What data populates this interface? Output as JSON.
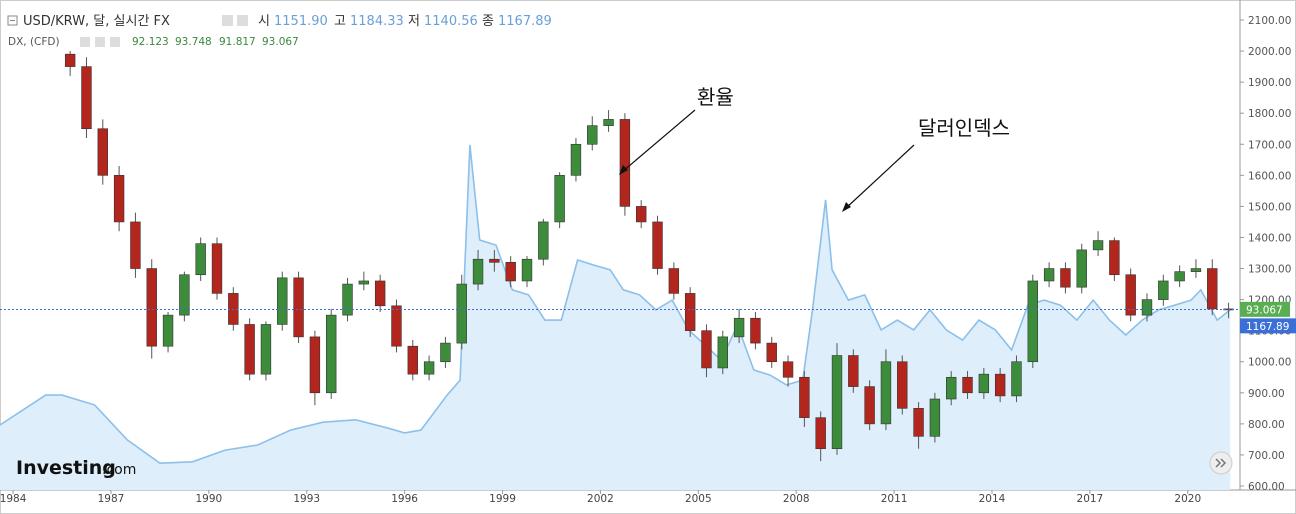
{
  "header": {
    "title": "USD/KRW, 달, 실시간 FX",
    "open_label": "시",
    "open": "1151.90",
    "high_label": "고",
    "high": "1184.33",
    "low_label": "저",
    "low": "1140.56",
    "close_label": "종",
    "close": "1167.89",
    "overlay_title": "DX, (CFD)",
    "overlay_open": "92.123",
    "overlay_high": "93.748",
    "overlay_low": "91.817",
    "overlay_close": "93.067"
  },
  "logo": {
    "brand": "Investing",
    "suffix": ".com"
  },
  "chart_data": {
    "type": "candlestick",
    "annotations": [
      "환율",
      "달러인덱스"
    ],
    "xlim": [
      1983.6,
      2021.6
    ],
    "xticks": [
      1984,
      1987,
      1990,
      1993,
      1996,
      1999,
      2002,
      2005,
      2008,
      2011,
      2014,
      2017,
      2020
    ],
    "ylim": [
      600,
      2100
    ],
    "yticks": [
      {
        "value": 600,
        "label": "600.00"
      },
      {
        "value": 700,
        "label": "700.00"
      },
      {
        "value": 800,
        "label": "800.00"
      },
      {
        "value": 900,
        "label": "900.00"
      },
      {
        "value": 1000,
        "label": "1000.00"
      },
      {
        "value": 1100,
        "label": "1100.00"
      },
      {
        "value": 1200,
        "label": "1200.00"
      },
      {
        "value": 1300,
        "label": "1300.00"
      },
      {
        "value": 1400,
        "label": "1400.00"
      },
      {
        "value": 1500,
        "label": "1500.00"
      },
      {
        "value": 1600,
        "label": "1600.00"
      },
      {
        "value": 1700,
        "label": "1700.00"
      },
      {
        "value": 1800,
        "label": "1800.00"
      },
      {
        "value": 1900,
        "label": "1900.00"
      },
      {
        "value": 2000,
        "label": "2000.00"
      },
      {
        "value": 2100,
        "label": "2100.00"
      }
    ],
    "y2lim": [
      55,
      155
    ],
    "up_color": "#3c8c3c",
    "down_color": "#b3261e",
    "candles": {
      "x": [
        1985.75,
        1986.25,
        1986.75,
        1987.25,
        1987.75,
        1988.25,
        1988.75,
        1989.25,
        1989.75,
        1990.25,
        1990.75,
        1991.25,
        1991.75,
        1992.25,
        1992.75,
        1993.25,
        1993.75,
        1994.25,
        1994.75,
        1995.25,
        1995.75,
        1996.25,
        1996.75,
        1997.25,
        1997.75,
        1998.25,
        1998.75,
        1999.25,
        1999.75,
        2000.25,
        2000.75,
        2001.25,
        2001.75,
        2002.25,
        2002.75,
        2003.25,
        2003.75,
        2004.25,
        2004.75,
        2005.25,
        2005.75,
        2006.25,
        2006.75,
        2007.25,
        2007.75,
        2008.25,
        2008.75,
        2009.25,
        2009.75,
        2010.25,
        2010.75,
        2011.25,
        2011.75,
        2012.25,
        2012.75,
        2013.25,
        2013.75,
        2014.25,
        2014.75,
        2015.25,
        2015.75,
        2016.25,
        2016.75,
        2017.25,
        2017.75,
        2018.25,
        2018.75,
        2019.25,
        2019.75,
        2020.25,
        2020.75,
        2021.25
      ],
      "open": [
        1990,
        1950,
        1750,
        1600,
        1450,
        1300,
        1050,
        1150,
        1280,
        1380,
        1220,
        1120,
        960,
        1120,
        1270,
        1080,
        900,
        1150,
        1250,
        1260,
        1180,
        1050,
        960,
        1000,
        1060,
        1250,
        1330,
        1320,
        1260,
        1330,
        1450,
        1600,
        1700,
        1760,
        1780,
        1500,
        1450,
        1300,
        1220,
        1100,
        980,
        1080,
        1140,
        1060,
        1000,
        950,
        820,
        720,
        1020,
        920,
        800,
        1000,
        850,
        760,
        880,
        950,
        900,
        960,
        890,
        1000,
        1260,
        1300,
        1240,
        1360,
        1390,
        1280,
        1150,
        1200,
        1260,
        1290,
        1300,
        1170
      ],
      "high": [
        2000,
        1980,
        1780,
        1630,
        1480,
        1330,
        1160,
        1290,
        1400,
        1400,
        1240,
        1140,
        1130,
        1290,
        1290,
        1100,
        1170,
        1270,
        1290,
        1280,
        1200,
        1070,
        1020,
        1080,
        1280,
        1360,
        1360,
        1340,
        1340,
        1460,
        1610,
        1720,
        1790,
        1810,
        1800,
        1520,
        1470,
        1320,
        1240,
        1120,
        1100,
        1170,
        1160,
        1080,
        1020,
        970,
        840,
        1060,
        1040,
        940,
        1040,
        1020,
        870,
        900,
        970,
        970,
        980,
        980,
        1020,
        1280,
        1320,
        1320,
        1380,
        1420,
        1400,
        1300,
        1220,
        1280,
        1310,
        1330,
        1330,
        1190
      ],
      "low": [
        1920,
        1720,
        1570,
        1420,
        1270,
        1010,
        1030,
        1130,
        1260,
        1200,
        1100,
        940,
        940,
        1100,
        1060,
        860,
        880,
        1130,
        1230,
        1160,
        1030,
        940,
        940,
        980,
        1040,
        1230,
        1290,
        1240,
        1240,
        1310,
        1430,
        1580,
        1680,
        1740,
        1470,
        1430,
        1280,
        1200,
        1080,
        950,
        960,
        1060,
        1040,
        980,
        920,
        790,
        680,
        700,
        900,
        780,
        780,
        830,
        720,
        740,
        860,
        880,
        880,
        870,
        870,
        980,
        1240,
        1220,
        1220,
        1340,
        1260,
        1130,
        1130,
        1180,
        1240,
        1270,
        1150,
        1140
      ],
      "close": [
        1950,
        1750,
        1600,
        1450,
        1300,
        1050,
        1150,
        1280,
        1380,
        1220,
        1120,
        960,
        1120,
        1270,
        1080,
        900,
        1150,
        1250,
        1260,
        1180,
        1050,
        960,
        1000,
        1060,
        1250,
        1330,
        1320,
        1260,
        1330,
        1450,
        1600,
        1700,
        1760,
        1780,
        1500,
        1450,
        1300,
        1220,
        1100,
        980,
        1080,
        1140,
        1060,
        1000,
        950,
        820,
        720,
        1020,
        920,
        800,
        1000,
        850,
        760,
        880,
        950,
        900,
        960,
        890,
        1000,
        1260,
        1300,
        1240,
        1360,
        1390,
        1280,
        1150,
        1200,
        1260,
        1290,
        1300,
        1170,
        1168
      ]
    },
    "series": [
      {
        "name": "DX, (CFD)",
        "axis": "y2",
        "color": "#8cc0ea",
        "fill": "#deeefa",
        "x": [
          1983.6,
          1985,
          1985.5,
          1986.5,
          1987.5,
          1988.5,
          1989.5,
          1990.5,
          1991.5,
          1992.5,
          1993.5,
          1994.5,
          1995.5,
          1996,
          1996.5,
          1997.3,
          1997.7,
          1998.0,
          1998.3,
          1998.8,
          1999.3,
          1999.8,
          2000.3,
          2000.8,
          2001.3,
          2001.8,
          2002.3,
          2002.7,
          2003.2,
          2003.7,
          2004.2,
          2004.7,
          2005.2,
          2005.7,
          2006.2,
          2006.7,
          2007.2,
          2007.7,
          2008.2,
          2008.5,
          2008.9,
          2009.1,
          2009.6,
          2010.1,
          2010.6,
          2011.1,
          2011.6,
          2012.1,
          2012.6,
          2013.1,
          2013.6,
          2014.1,
          2014.6,
          2015.1,
          2015.6,
          2016.1,
          2016.6,
          2017.1,
          2017.6,
          2018.1,
          2018.6,
          2019.1,
          2019.6,
          2020.1,
          2020.4,
          2020.9,
          2021.3
        ],
        "values": [
          68.1,
          74.5,
          74.5,
          72.4,
          64.9,
          59.9,
          60.2,
          62.7,
          63.8,
          67,
          68.7,
          69.2,
          67.4,
          66.4,
          67,
          74.5,
          77.7,
          128.2,
          107.8,
          106.7,
          97.1,
          96,
          90.6,
          90.6,
          103.5,
          102.4,
          101.4,
          97.1,
          96,
          92.8,
          94.9,
          88.5,
          85.3,
          82,
          89.5,
          79.9,
          78.8,
          76.7,
          77.7,
          92.8,
          116.4,
          101.4,
          94.9,
          96,
          88.5,
          90.6,
          88.5,
          92.8,
          88.5,
          86.3,
          90.6,
          88.5,
          84.2,
          93.8,
          94.9,
          93.8,
          90.6,
          94.9,
          90.6,
          87.4,
          90.6,
          92.8,
          93.8,
          94.9,
          97.1,
          90.6,
          92.8
        ]
      }
    ]
  }
}
